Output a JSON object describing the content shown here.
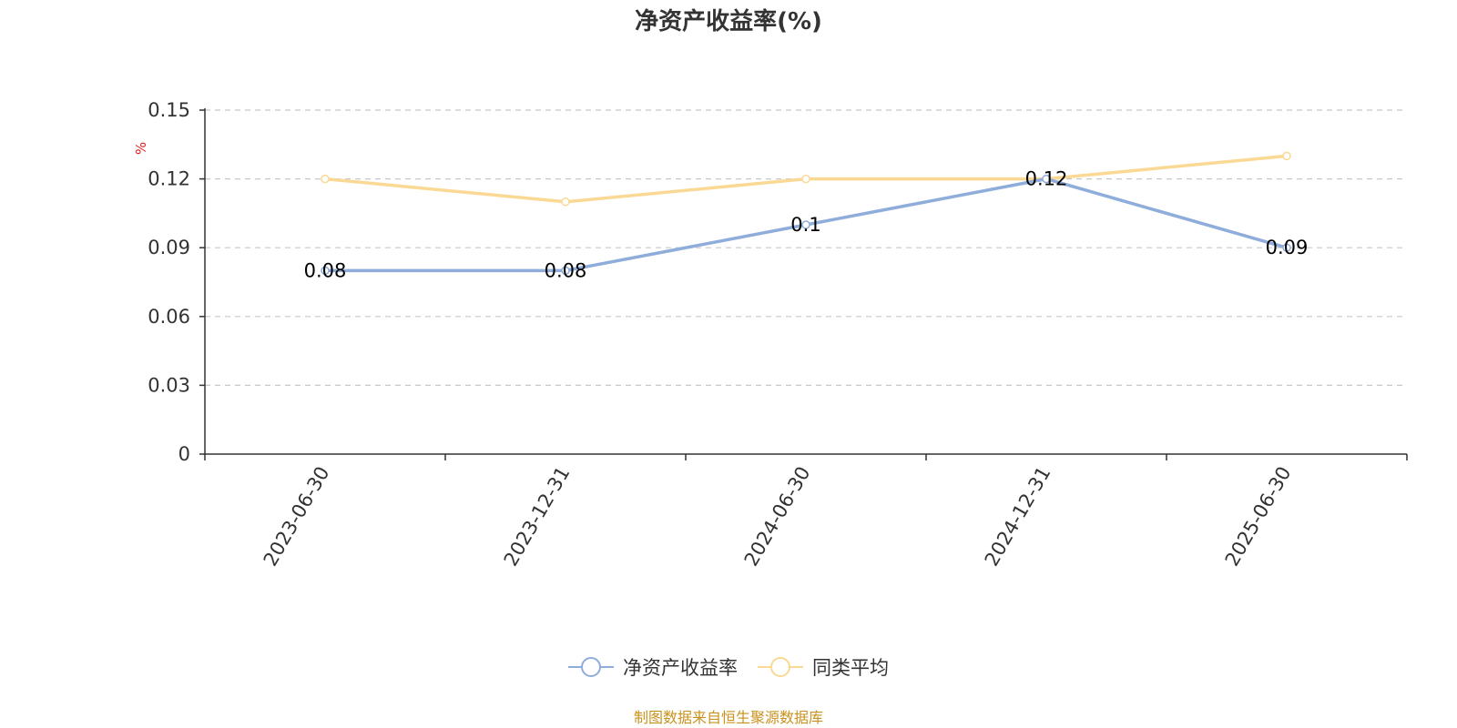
{
  "title": "净资产收益率(%)",
  "source_note": "制图数据来自恒生聚源数据库",
  "colors": {
    "series_main": "#8FADDA",
    "series_avg": "#FAD995",
    "unit_label": "#E02020",
    "source_note": "#C9921E",
    "grid": "#C8C8C8",
    "axis": "#333333"
  },
  "chart_data": {
    "type": "line",
    "title": "净资产收益率(%)",
    "ylabel": "%",
    "xlabel": "",
    "categories": [
      "2023-06-30",
      "2023-12-31",
      "2024-06-30",
      "2024-12-31",
      "2025-06-30"
    ],
    "ylim": [
      0,
      0.15
    ],
    "yticks": [
      "0",
      "0.03",
      "0.06",
      "0.09",
      "0.12",
      "0.15"
    ],
    "grid": true,
    "legend_position": "bottom",
    "series": [
      {
        "name": "净资产收益率",
        "values": [
          0.08,
          0.08,
          0.1,
          0.12,
          0.09
        ],
        "labels": [
          "0.08",
          "0.08",
          "0.1",
          "0.12",
          "0.09"
        ]
      },
      {
        "name": "同类平均",
        "values": [
          0.12,
          0.11,
          0.12,
          0.12,
          0.13
        ]
      }
    ]
  }
}
